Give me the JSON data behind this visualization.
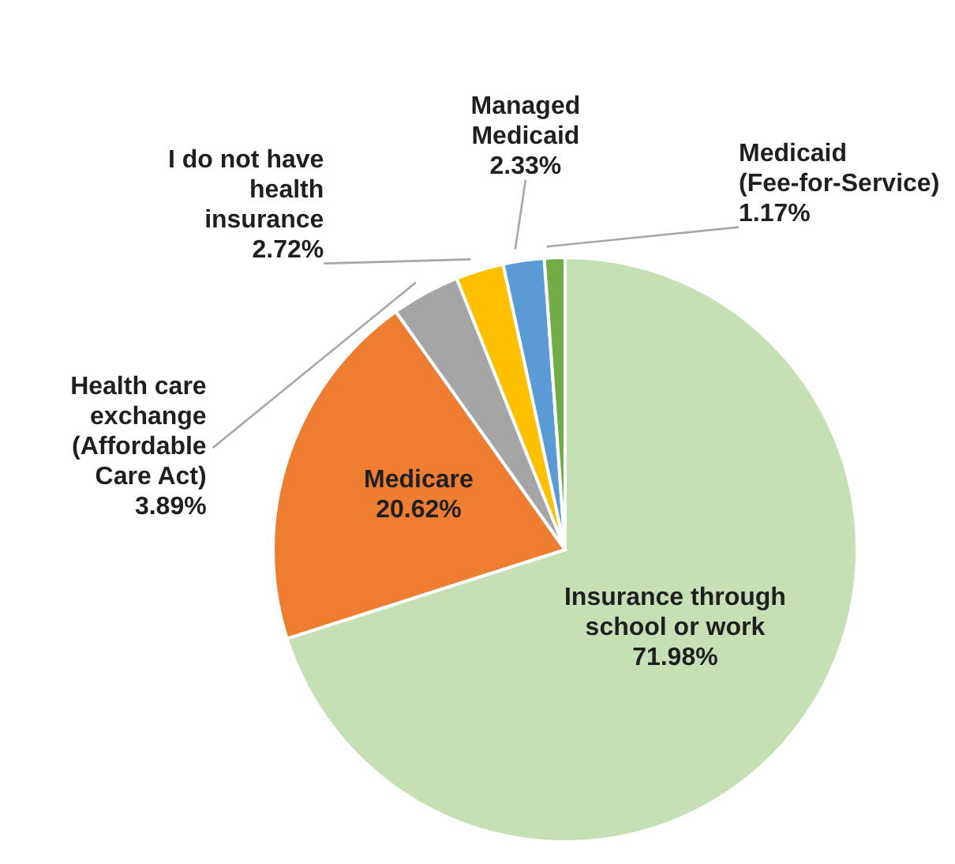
{
  "chart_data": {
    "type": "pie",
    "categories": [
      "Insurance through school or work",
      "Medicare",
      "Health care exchange (Affordable Care Act)",
      "I do not have health insurance",
      "Managed Medicaid",
      "Medicaid (Fee-for-Service)"
    ],
    "values": [
      71.98,
      20.62,
      3.89,
      2.72,
      2.33,
      1.17
    ],
    "value_labels": [
      "71.98%",
      "20.62%",
      "3.89%",
      "2.72%",
      "2.33%",
      "1.17%"
    ],
    "colors": [
      "#c5e0b4",
      "#ed7d31",
      "#a5a5a5",
      "#ffc000",
      "#5b9bd5",
      "#70ad47"
    ],
    "legend": false
  }
}
